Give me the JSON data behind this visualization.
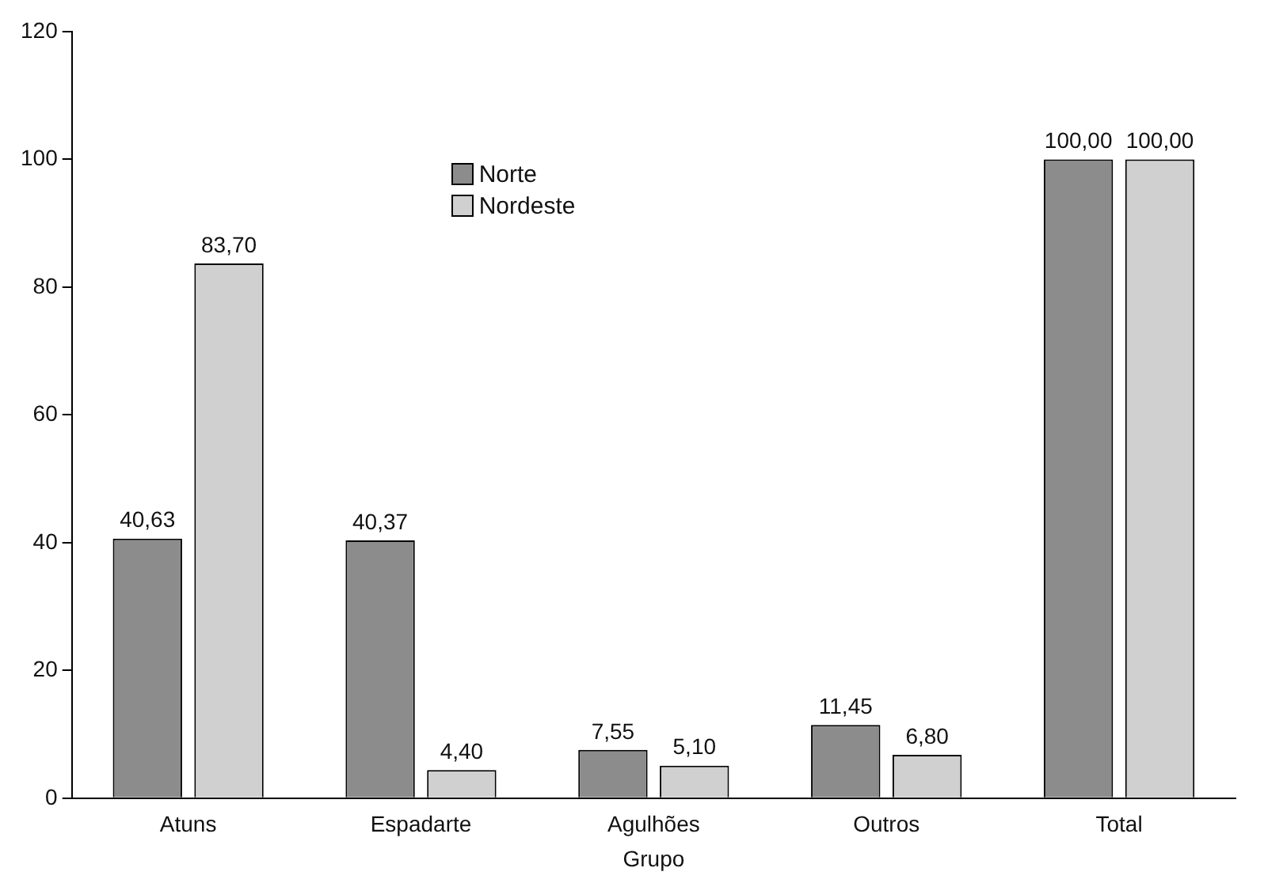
{
  "chart_data": {
    "type": "bar",
    "xlabel": "Grupo",
    "categories": [
      "Atuns",
      "Espadarte",
      "Agulhões",
      "Outros",
      "Total"
    ],
    "series": [
      {
        "name": "Norte",
        "color": "#8c8c8c",
        "values": [
          40.63,
          40.37,
          7.55,
          11.45,
          100.0
        ],
        "value_labels": [
          "40,63",
          "40,37",
          "7,55",
          "11,45",
          "100,00"
        ]
      },
      {
        "name": "Nordeste",
        "color": "#d0d0d0",
        "values": [
          83.7,
          4.4,
          5.1,
          6.8,
          100.0
        ],
        "value_labels": [
          "83,70",
          "4,40",
          "5,10",
          "6,80",
          "100,00"
        ]
      }
    ],
    "ylim": [
      0,
      120
    ],
    "yticks": [
      0,
      20,
      40,
      60,
      80,
      100,
      120
    ],
    "grid": false,
    "legend": "top left"
  }
}
